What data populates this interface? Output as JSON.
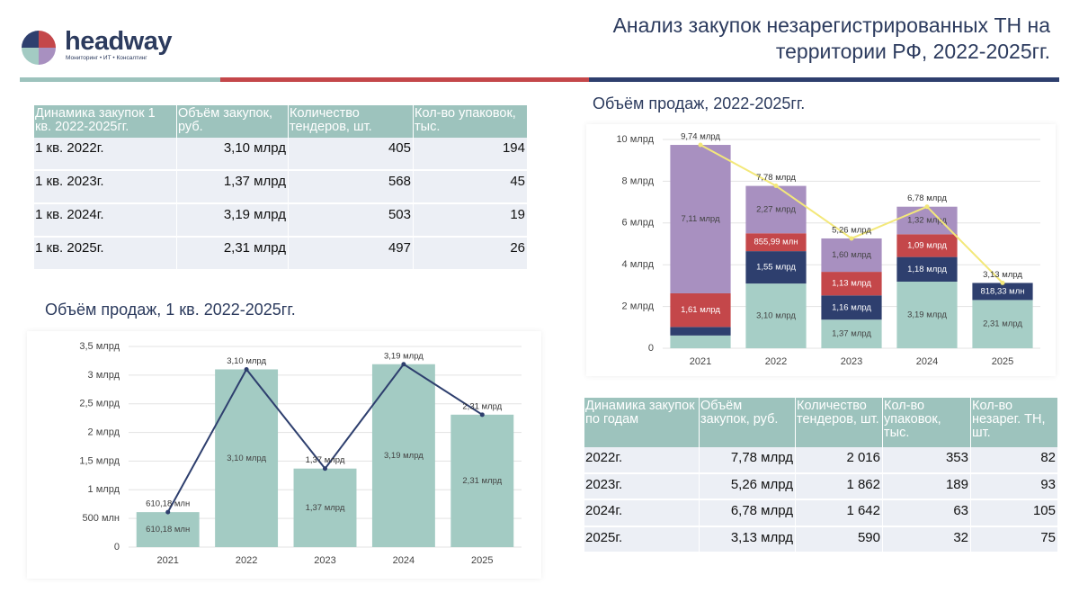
{
  "header": {
    "logo": "headway",
    "tagline": "Мониторинг • ИТ • Консалтинг",
    "title": "Анализ закупок незарегистрированных ТН на территории РФ, 2022-2025гг."
  },
  "table1": {
    "columns": [
      "Динамика закупок 1 кв. 2022-2025гг.",
      "Объём закупок, руб.",
      "Количество тендеров, шт.",
      "Кол-во упаковок, тыс."
    ],
    "rows": [
      [
        "1 кв. 2022г.",
        "3,10 млрд",
        "405",
        "194"
      ],
      [
        "1 кв. 2023г.",
        "1,37 млрд",
        "568",
        "45"
      ],
      [
        "1 кв. 2024г.",
        "3,19 млрд",
        "503",
        "19"
      ],
      [
        "1 кв. 2025г.",
        "2,31 млрд",
        "497",
        "26"
      ]
    ]
  },
  "table2": {
    "columns": [
      "Динамика закупок по годам",
      "Объём закупок, руб.",
      "Количество тендеров, шт.",
      "Кол-во упаковок, тыс.",
      "Кол-во незарег. ТН, шт."
    ],
    "rows": [
      [
        "2022г.",
        "7,78 млрд",
        "2 016",
        "353",
        "82"
      ],
      [
        "2023г.",
        "5,26 млрд",
        "1 862",
        "189",
        "93"
      ],
      [
        "2024г.",
        "6,78 млрд",
        "1 642",
        "63",
        "105"
      ],
      [
        "2025г.",
        "3,13 млрд",
        "590",
        "32",
        "75"
      ]
    ]
  },
  "chart_data": [
    {
      "type": "bar",
      "stacked": true,
      "title": "Объём продаж, 2022-2025гг.",
      "categories": [
        "2021",
        "2022",
        "2023",
        "2024",
        "2025"
      ],
      "ylim": [
        0,
        10
      ],
      "grid": true,
      "yticks": [
        0,
        {
          "value": 2,
          "label": "2 млрд"
        },
        {
          "value": 4,
          "label": "4 млрд"
        },
        {
          "value": 6,
          "label": "6 млрд"
        },
        {
          "value": 8,
          "label": "8 млрд"
        },
        {
          "value": 10,
          "label": "10 млрд"
        }
      ],
      "series": [
        {
          "color": "#a6cec6",
          "values": [
            0.61,
            3.1,
            1.37,
            3.19,
            2.31
          ],
          "value_labels": [
            null,
            "3,10 млрд",
            "1,37 млрд",
            "3,19 млрд",
            "2,31 млрд"
          ]
        },
        {
          "color": "#2e3f6e",
          "values": [
            0.41,
            1.55,
            1.16,
            1.18,
            0.81833
          ],
          "value_labels": [
            null,
            "1,55 млрд",
            "1,16 млрд",
            "1,18 млрд",
            "818,33 млн"
          ]
        },
        {
          "color": "#c4474a",
          "values": [
            1.61,
            0.85599,
            1.13,
            1.09,
            null
          ],
          "value_labels": [
            "1,61 млрд",
            "855,99 млн",
            "1,13 млрд",
            "1,09 млрд",
            null
          ]
        },
        {
          "color": "#a890c0",
          "values": [
            7.11,
            2.27,
            1.6,
            1.32,
            null
          ],
          "value_labels": [
            "7,11 млрд",
            "2,27 млрд",
            "1,60 млрд",
            "1,32 млрд",
            null
          ]
        },
        {
          "type": "line",
          "color": "#f3e87a",
          "values": [
            9.74,
            7.78,
            5.26,
            6.78,
            3.13
          ],
          "value_labels": [
            "9,74 млрд",
            "7,78 млрд",
            "5,26 млрд",
            "6,78 млрд",
            "3,13 млрд"
          ]
        }
      ]
    },
    {
      "type": "bar",
      "stacked": false,
      "title": "Объём продаж, 1 кв. 2022-2025гг.",
      "categories": [
        "2021",
        "2022",
        "2023",
        "2024",
        "2025"
      ],
      "ylim": [
        0,
        3.5
      ],
      "grid": true,
      "yticks": [
        0,
        {
          "value": 0.5,
          "label": "500 млн"
        },
        {
          "value": 1,
          "label": "1 млрд"
        },
        {
          "value": 1.5,
          "label": "1,5 млрд"
        },
        {
          "value": 2,
          "label": "2 млрд"
        },
        {
          "value": 2.5,
          "label": "2,5 млрд"
        },
        {
          "value": 3,
          "label": "3 млрд"
        },
        {
          "value": 3.5,
          "label": "3,5 млрд"
        }
      ],
      "series": [
        {
          "color": "#a3cbc3",
          "values": [
            0.61018,
            3.1,
            1.37,
            3.19,
            2.31
          ],
          "value_labels": [
            "610,18 млн",
            "3,10 млрд",
            "1,37 млрд",
            "3,19 млрд",
            "2,31 млрд"
          ]
        },
        {
          "type": "line",
          "color": "#2e3f6e",
          "values": [
            0.61018,
            3.1,
            1.37,
            3.19,
            2.31
          ],
          "value_labels": [
            "610,18 млн",
            "3,10 млрд",
            "1,37 млрд",
            "3,19 млрд",
            "2,31 млрд"
          ]
        }
      ]
    }
  ]
}
